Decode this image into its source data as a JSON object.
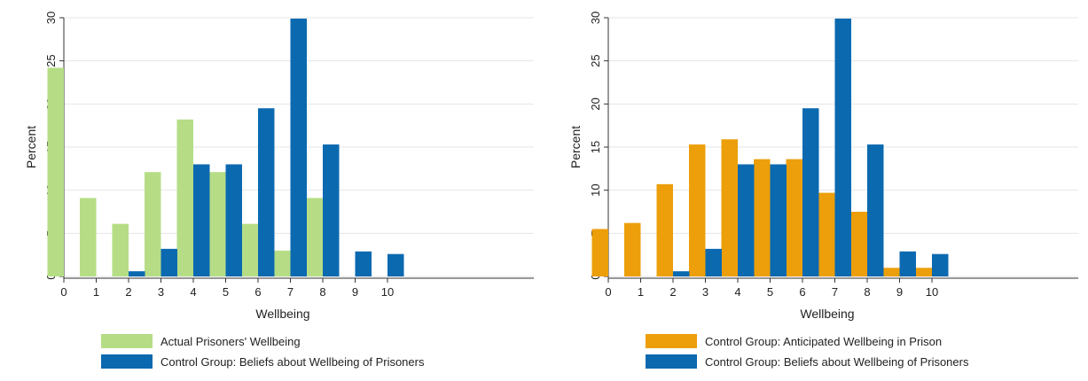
{
  "chart_data": [
    {
      "type": "bar",
      "xlabel": "Wellbeing",
      "ylabel": "Percent",
      "ylim": [
        0,
        30
      ],
      "yticks": [
        0,
        5,
        10,
        15,
        20,
        25,
        30
      ],
      "grid": true,
      "legend_position": "bottom",
      "categories": [
        "0",
        "1",
        "2",
        "3",
        "4",
        "5",
        "6",
        "7",
        "8",
        "9",
        "10"
      ],
      "series": [
        {
          "name": "Actual Prisoners' Wellbeing",
          "color": "#b6dd86",
          "values": [
            24.2,
            9.1,
            6.1,
            12.1,
            18.2,
            12.1,
            6.1,
            3.0,
            9.1,
            0,
            0
          ]
        },
        {
          "name": "Control Group: Beliefs about Wellbeing of Prisoners",
          "color": "#0b69b0",
          "values": [
            0,
            0,
            0.6,
            3.2,
            13.0,
            13.0,
            19.5,
            29.9,
            15.3,
            2.9,
            2.6
          ]
        }
      ]
    },
    {
      "type": "bar",
      "xlabel": "Wellbeing",
      "ylabel": "Percent",
      "ylim": [
        0,
        30
      ],
      "yticks": [
        0,
        5,
        10,
        15,
        20,
        25,
        30
      ],
      "grid": true,
      "legend_position": "bottom",
      "categories": [
        "0",
        "1",
        "2",
        "3",
        "4",
        "5",
        "6",
        "7",
        "8",
        "9",
        "10"
      ],
      "series": [
        {
          "name": "Control Group: Anticipated Wellbeing in Prison",
          "color": "#ec9f0a",
          "values": [
            5.5,
            6.2,
            10.7,
            15.3,
            15.9,
            13.6,
            13.6,
            9.7,
            7.5,
            1.0,
            1.0
          ]
        },
        {
          "name": "Control Group: Beliefs about Wellbeing of Prisoners",
          "color": "#0b69b0",
          "values": [
            0,
            0,
            0.6,
            3.2,
            13.0,
            13.0,
            19.5,
            29.9,
            15.3,
            2.9,
            2.6
          ]
        }
      ]
    }
  ]
}
